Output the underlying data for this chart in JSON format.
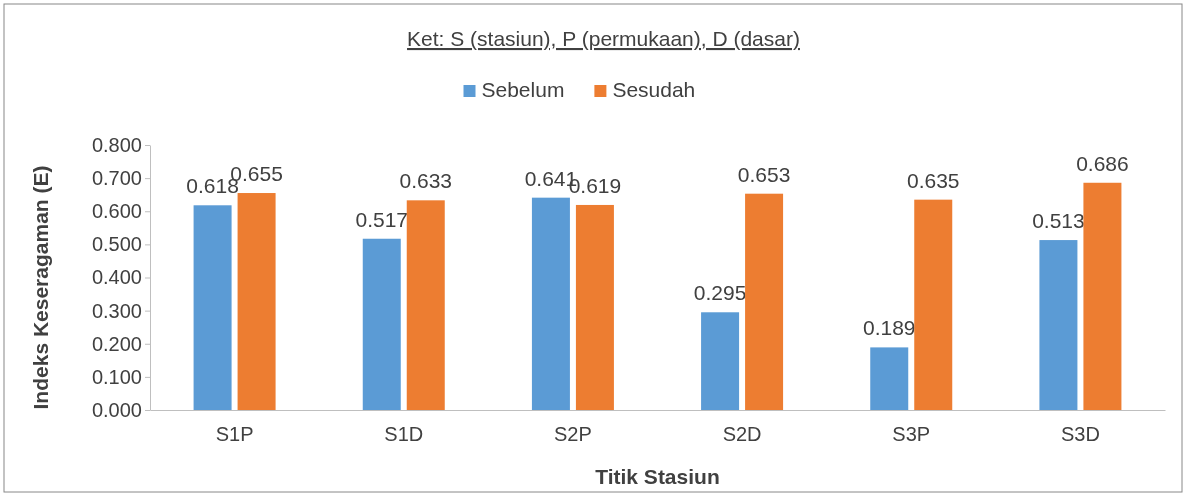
{
  "chart_data": {
    "type": "bar",
    "title": "Ket: S (stasiun), P (permukaan), D (dasar)",
    "xlabel": "Titik Stasiun",
    "ylabel": "Indeks Keseragaman (E)",
    "categories": [
      "S1P",
      "S1D",
      "S2P",
      "S2D",
      "S3P",
      "S3D"
    ],
    "series": [
      {
        "name": "Sebelum",
        "color": "#5b9bd5",
        "values": [
          0.618,
          0.517,
          0.641,
          0.295,
          0.189,
          0.513
        ]
      },
      {
        "name": "Sesudah",
        "color": "#ed7d31",
        "values": [
          0.655,
          0.633,
          0.619,
          0.653,
          0.635,
          0.686
        ]
      }
    ],
    "ylim": [
      0,
      0.8
    ],
    "yticks": [
      {
        "value": 0,
        "label": "0.000"
      },
      {
        "value": 0.1,
        "label": "0.100"
      },
      {
        "value": 0.2,
        "label": "0.200"
      },
      {
        "value": 0.3,
        "label": "0.300"
      },
      {
        "value": 0.4,
        "label": "0.400"
      },
      {
        "value": 0.5,
        "label": "0.500"
      },
      {
        "value": 0.6,
        "label": "0.600"
      },
      {
        "value": 0.7,
        "label": "0.700"
      },
      {
        "value": 0.8,
        "label": "0.800"
      }
    ],
    "data_labels": true,
    "legend": "top",
    "grid": false
  }
}
